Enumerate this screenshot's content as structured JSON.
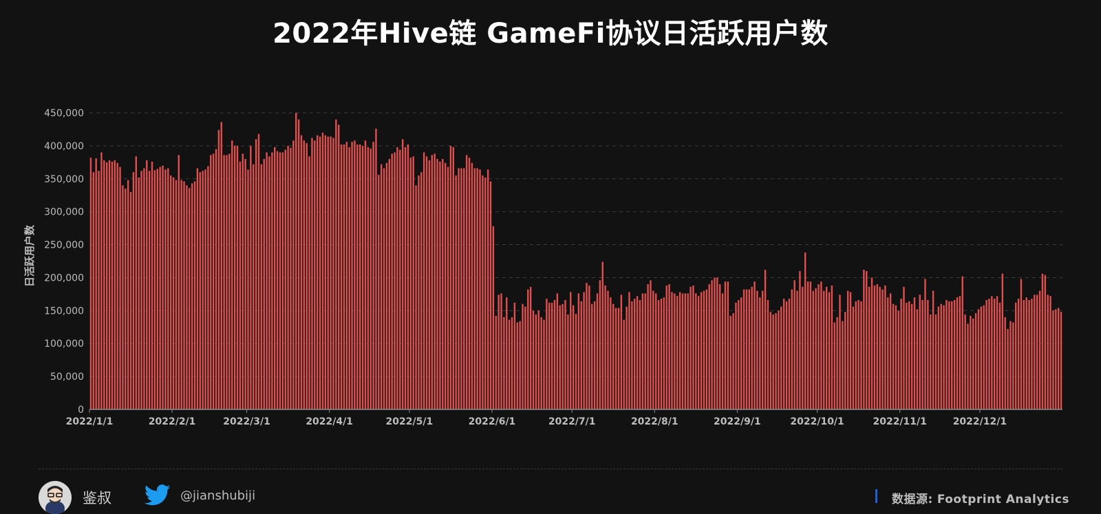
{
  "chart_data": {
    "type": "bar",
    "title": "2022年Hive链 GameFi协议日活跃用户数",
    "ylabel": "日活跃用户数",
    "xlabel": "",
    "ylim": [
      0,
      450000
    ],
    "grid": true,
    "bar_color": "#e0504f",
    "x_start": "2022/1/1",
    "x_end": "2022/12/31",
    "x_ticks": [
      "2022/1/1",
      "2022/2/1",
      "2022/3/1",
      "2022/4/1",
      "2022/5/1",
      "2022/6/1",
      "2022/7/1",
      "2022/8/1",
      "2022/9/1",
      "2022/10/1",
      "2022/11/1",
      "2022/12/1"
    ],
    "y_ticks": [
      "0",
      "50,000",
      "100,000",
      "150,000",
      "200,000",
      "250,000",
      "300,000",
      "350,000",
      "400,000",
      "450,000"
    ],
    "monthly_daily_values": [
      [
        382000,
        360000,
        381000,
        362000,
        390000,
        378000,
        375000,
        378000,
        376000,
        378000,
        374000,
        368000,
        340000,
        335000,
        348000,
        330000,
        360000,
        384000,
        352000,
        362000,
        366000,
        378000,
        362000,
        376000,
        363000,
        365000,
        368000,
        370000,
        364000,
        366000,
        355000
      ],
      [
        352000,
        348000,
        386000,
        348000,
        346000,
        340000,
        336000,
        343000,
        346000,
        366000,
        360000,
        362000,
        364000,
        369000,
        386000,
        388000,
        395000,
        424000,
        436000,
        386000,
        386000,
        388000,
        408000,
        400000,
        400000,
        376000,
        388000,
        380000
      ],
      [
        364000,
        400000,
        372000,
        410000,
        418000,
        372000,
        380000,
        390000,
        384000,
        390000,
        398000,
        392000,
        390000,
        390000,
        394000,
        400000,
        397000,
        408000,
        450000,
        440000,
        416000,
        408000,
        404000,
        384000,
        412000,
        408000,
        416000,
        414000,
        420000,
        416000,
        414000
      ],
      [
        414000,
        412000,
        440000,
        432000,
        402000,
        402000,
        406000,
        398000,
        406000,
        408000,
        402000,
        402000,
        400000,
        408000,
        398000,
        396000,
        406000,
        426000,
        356000,
        372000,
        366000,
        374000,
        380000,
        388000,
        390000,
        398000,
        394000,
        410000,
        398000,
        402000
      ],
      [
        382000,
        384000,
        340000,
        355000,
        360000,
        390000,
        384000,
        378000,
        386000,
        388000,
        380000,
        376000,
        380000,
        374000,
        368000,
        400000,
        398000,
        355000,
        366000,
        366000,
        366000,
        386000,
        382000,
        374000,
        366000,
        366000,
        364000,
        355000,
        352000,
        364000,
        346000
      ],
      [
        278000,
        142000,
        174000,
        176000,
        140000,
        170000,
        136000,
        140000,
        162000,
        132000,
        134000,
        160000,
        156000,
        182000,
        186000,
        150000,
        144000,
        150000,
        140000,
        136000,
        168000,
        162000,
        162000,
        166000,
        176000,
        158000,
        160000,
        166000,
        144000,
        178000
      ],
      [
        158000,
        145000,
        176000,
        164000,
        178000,
        192000,
        188000,
        160000,
        164000,
        176000,
        196000,
        224000,
        188000,
        180000,
        170000,
        160000,
        154000,
        154000,
        174000,
        136000,
        156000,
        178000,
        164000,
        168000,
        172000,
        166000,
        176000,
        176000,
        190000,
        196000,
        180000
      ],
      [
        176000,
        166000,
        168000,
        170000,
        188000,
        190000,
        178000,
        176000,
        172000,
        178000,
        176000,
        176000,
        176000,
        186000,
        188000,
        176000,
        172000,
        178000,
        180000,
        182000,
        190000,
        196000,
        200000,
        200000,
        190000,
        176000,
        194000,
        194000,
        142000,
        146000,
        162000
      ],
      [
        166000,
        170000,
        182000,
        182000,
        182000,
        186000,
        194000,
        180000,
        170000,
        180000,
        212000,
        166000,
        148000,
        144000,
        146000,
        150000,
        156000,
        168000,
        164000,
        168000,
        182000,
        196000,
        180000,
        210000,
        186000,
        238000,
        194000,
        194000,
        180000,
        184000
      ],
      [
        190000,
        194000,
        180000,
        186000,
        178000,
        188000,
        132000,
        140000,
        174000,
        134000,
        148000,
        180000,
        178000,
        156000,
        164000,
        166000,
        164000,
        212000,
        210000,
        186000,
        200000,
        188000,
        190000,
        186000,
        182000,
        188000,
        170000,
        176000,
        160000,
        158000,
        150000
      ],
      [
        168000,
        186000,
        162000,
        164000,
        160000,
        170000,
        152000,
        174000,
        166000,
        198000,
        166000,
        144000,
        180000,
        144000,
        156000,
        160000,
        158000,
        166000,
        164000,
        164000,
        166000,
        170000,
        172000,
        202000,
        144000,
        130000,
        142000,
        138000,
        146000,
        152000
      ],
      [
        156000,
        158000,
        166000,
        168000,
        172000,
        168000,
        172000,
        162000,
        206000,
        140000,
        122000,
        134000,
        132000,
        162000,
        168000,
        198000,
        166000,
        170000,
        166000,
        168000,
        174000,
        174000,
        180000,
        206000,
        204000,
        174000,
        172000,
        150000,
        152000,
        154000,
        148000
      ]
    ]
  },
  "footer": {
    "author": "鉴叔",
    "handle": "@jianshubiji",
    "source_label": "数据源:",
    "source_name": "Footprint  Analytics"
  }
}
